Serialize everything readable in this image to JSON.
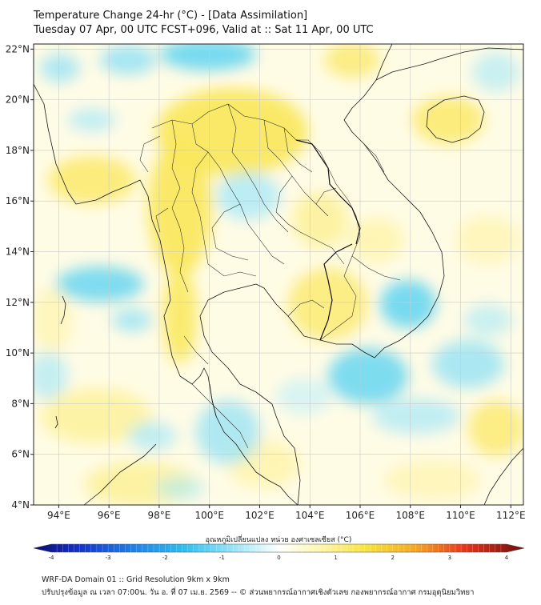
{
  "title": {
    "line1": "Temperature Change 24-hr (°C) - [Data Assimilation]",
    "line2": "Tuesday 07 Apr, 00 UTC FCST+096, Valid at :: Sat 11 Apr, 00 UTC"
  },
  "map": {
    "lon_range": [
      93,
      112.5
    ],
    "lat_range": [
      4,
      22.2
    ],
    "lat_ticks": [
      {
        "value": 22,
        "label": "22°N"
      },
      {
        "value": 20,
        "label": "20°N"
      },
      {
        "value": 18,
        "label": "18°N"
      },
      {
        "value": 16,
        "label": "16°N"
      },
      {
        "value": 14,
        "label": "14°N"
      },
      {
        "value": 12,
        "label": "12°N"
      },
      {
        "value": 10,
        "label": "10°N"
      },
      {
        "value": 8,
        "label": "8°N"
      },
      {
        "value": 6,
        "label": "6°N"
      },
      {
        "value": 4,
        "label": "4°N"
      }
    ],
    "lon_ticks": [
      {
        "value": 94,
        "label": "94°E"
      },
      {
        "value": 96,
        "label": "96°E"
      },
      {
        "value": 98,
        "label": "98°E"
      },
      {
        "value": 100,
        "label": "100°E"
      },
      {
        "value": 102,
        "label": "102°E"
      },
      {
        "value": 104,
        "label": "104°E"
      },
      {
        "value": 106,
        "label": "106°E"
      },
      {
        "value": 108,
        "label": "108°E"
      },
      {
        "value": 110,
        "label": "110°E"
      },
      {
        "value": 112,
        "label": "112°E"
      }
    ],
    "colors": {
      "warm": "#fbe96a",
      "warm_light": "#fdf5b0",
      "cool": "#5fd3f1",
      "cool_light": "#b4ebfa",
      "land_line": "#1a1a1a"
    }
  },
  "colorbar": {
    "title": "อุณหภูมิเปลี่ยนแปลง หน่วย องศาเซลเซียส (°C)",
    "min": -4,
    "max": 4,
    "ticks": [
      "-4",
      "-3",
      "-2",
      "-1",
      "0",
      "1",
      "2",
      "3",
      "4"
    ]
  },
  "footer": {
    "line1": "WRF-DA Domain 01 :: Grid Resolution 9km x 9km",
    "line2": "ปรับปรุงข้อมูล ณ เวลา 07:00น. วัน อ. ที่ 07 เม.ย. 2569 -- © ส่วนพยากรณ์อากาศเชิงตัวเลข กองพยากรณ์อากาศ กรมอุตุนิยมวิทยา"
  }
}
